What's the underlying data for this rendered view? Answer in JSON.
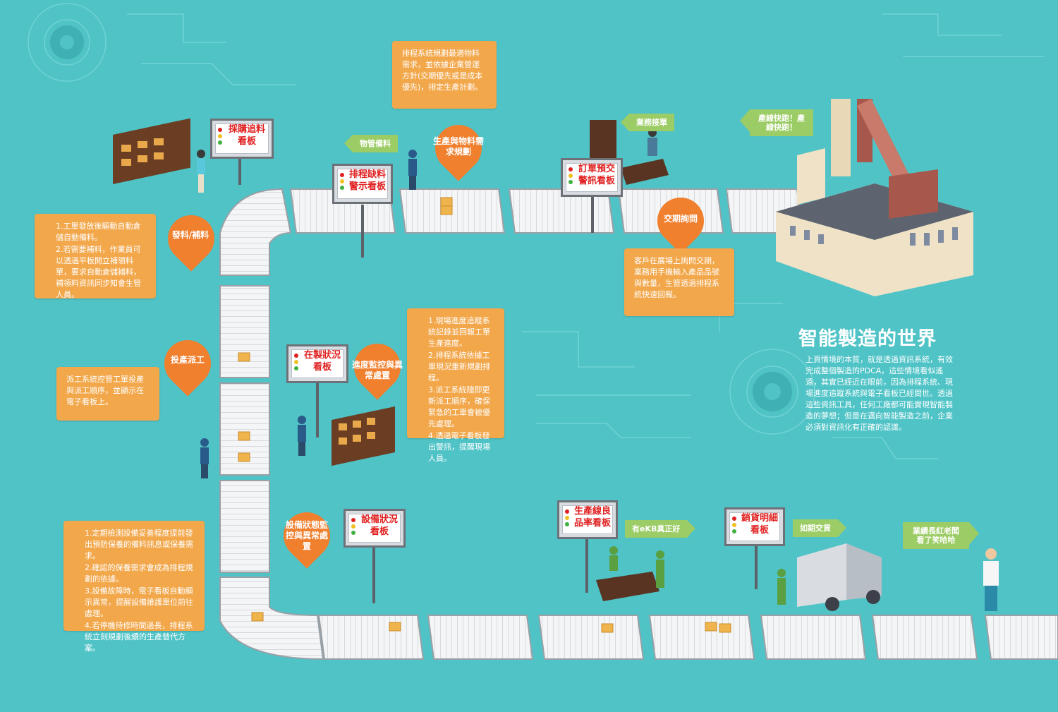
{
  "colors": {
    "background": "#4fc3c6",
    "callout": "#f2a74b",
    "pin": "#f07f2e",
    "tag": "#9ccc65",
    "board_text": "#e02020"
  },
  "title": {
    "heading": "智能製造的世界",
    "intro": "上頁情境的本質，就是透過資訊系統，有效完成整個製造的PDCA，這些情境看似遙遠，其實已經近在眼前，因為排程系統、現場進度追蹤系統與電子看板已經問世。透過這些資訊工具，任何工廠都可能實現智能製造的夢想；但是在邁向智能製造之前，企業必須對資訊化有正確的認識。"
  },
  "callouts": {
    "plan": "排程系統規劃最適物料需求，並依據企業營運方針(交期優先或是成本優先)，排定生產計劃。",
    "issue": [
      "1.工單發放後驅動自動倉儲自動備料。",
      "2.若需要補料，作業員可以透過平板開立補領料單，要求自動倉儲補料，補領料資訊同步知會生管人員。"
    ],
    "delivery": "客戶在展場上詢問交期，業務用手機輸入產品品號與數量，生管透過排程系統快速回報。",
    "dispatch": "派工系統控管工單投產與派工順序，並顯示在電子看板上。",
    "progress": [
      "1.現場進度追蹤系統記錄並回報工單生產進度。",
      "2.排程系統依據工單現況重新規劃排程。",
      "3.派工系統隨即更新派工順序，確保緊急的工單會被優先處理。",
      "4.透過電子看板發出警訊，提醒現場人員。"
    ],
    "equipment": [
      "1.定期檢測設備妥善程度提前發出預防保養的備料訊息或保養需求。",
      "2.確認的保養需求會成為排程規劃的依據。",
      "3.設備故障時，電子看板自動顯示異常，提醒設備維護單位前往處理。",
      "4.若停機待修時間過長，排程系統立刻規劃後續的生產替代方案。"
    ]
  },
  "pins": {
    "plan": "生產與物料需求規劃",
    "issue": "發料/補料",
    "delivery": "交期詢問",
    "dispatch": "投產派工",
    "progress": "進度監控與異常處置",
    "equipment": "設備狀態監控與異常處置"
  },
  "boards": {
    "purchase": "採購追料看板",
    "shortage": "排程缺料警示看板",
    "order": "訂單預交警訊看板",
    "wip": "在製狀況看板",
    "equipment": "設備狀況看板",
    "yield": "生產線良品率看板",
    "sales": "銷貨明細看板"
  },
  "tags": {
    "material": "物管備料",
    "sales_order": "業務接單",
    "line_fast": "產線快跑！產線快跑！",
    "ekb": "有eKB真正好",
    "on_time": "如期交貨",
    "boss": "業績長紅老闆看了笑哈哈"
  }
}
